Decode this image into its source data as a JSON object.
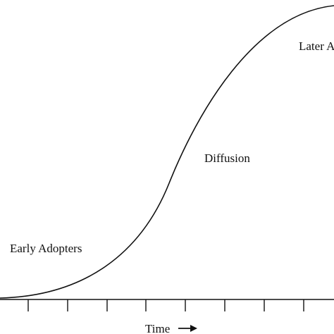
{
  "labels": {
    "early": "Early Adopters",
    "diffusion": "Diffusion",
    "later": "Later Adopters"
  },
  "axis": {
    "label": "Time"
  }
}
